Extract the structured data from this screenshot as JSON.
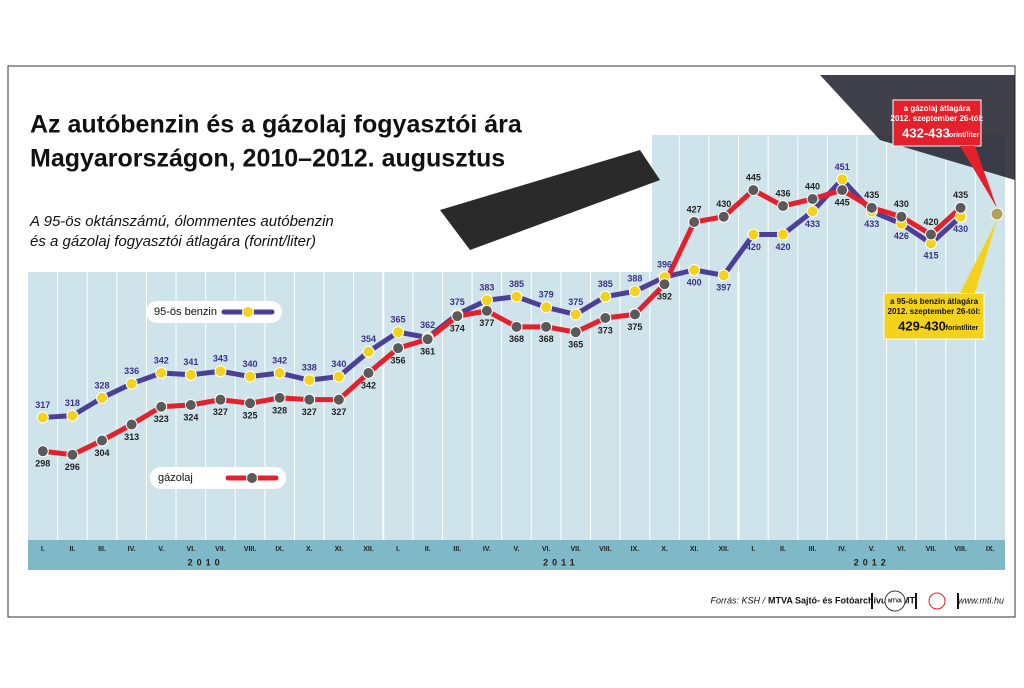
{
  "chart_data": {
    "type": "line",
    "title": [
      "Az autóbenzin és a gázolaj fogyasztói ára",
      "Magyarországon, 2010–2012. augusztus"
    ],
    "subtitle": [
      "A 95-ös oktánszámú, ólommentes autóbenzin",
      "és a gázolaj fogyasztói átlagára (forint/liter)"
    ],
    "categories": [
      "I.",
      "II.",
      "III.",
      "IV.",
      "V.",
      "VI.",
      "VII.",
      "VIII.",
      "IX.",
      "X.",
      "XI.",
      "XII.",
      "I.",
      "II.",
      "III.",
      "IV.",
      "V.",
      "VI.",
      "VII.",
      "VIII.",
      "IX.",
      "X.",
      "XI.",
      "XII.",
      "I.",
      "II.",
      "III.",
      "IV.",
      "V.",
      "VI.",
      "VII.",
      "VIII.",
      "IX."
    ],
    "years": [
      "2010",
      "2011",
      "2012"
    ],
    "series": [
      {
        "name": "95-ös benzin",
        "color": "#4b3f98",
        "marker_color": "#f2d21a",
        "values": [
          317,
          318,
          328,
          336,
          342,
          341,
          343,
          340,
          342,
          338,
          340,
          354,
          365,
          362,
          375,
          383,
          385,
          379,
          375,
          385,
          388,
          396,
          400,
          397,
          420,
          420,
          433,
          451,
          433,
          426,
          415,
          430,
          null
        ]
      },
      {
        "name": "gázolaj",
        "color": "#e3202b",
        "marker_color": "#5a5a5a",
        "values": [
          298,
          296,
          304,
          313,
          323,
          324,
          327,
          325,
          328,
          327,
          327,
          342,
          356,
          361,
          374,
          377,
          368,
          368,
          365,
          373,
          375,
          392,
          427,
          430,
          445,
          436,
          440,
          445,
          435,
          430,
          420,
          435,
          null
        ]
      }
    ],
    "ylim": [
      248,
      476
    ],
    "grid": true,
    "annotations": [
      {
        "lines": [
          "a gázolaj átlagára",
          "2012. szeptember 26-tól:"
        ],
        "value": "432-433",
        "unit": "forint/liter"
      },
      {
        "lines": [
          "a 95-ös benzin átlagára",
          "2012. szeptember 26-tól:"
        ],
        "value": "429-430",
        "unit": "forint/liter"
      }
    ],
    "footer": {
      "source_prefix": "Forrás: KSH /",
      "source": "MTVA Sajtó- és Fotóarchívum / MTI",
      "logo": "MTVA",
      "url": "www.mti.hu"
    }
  }
}
